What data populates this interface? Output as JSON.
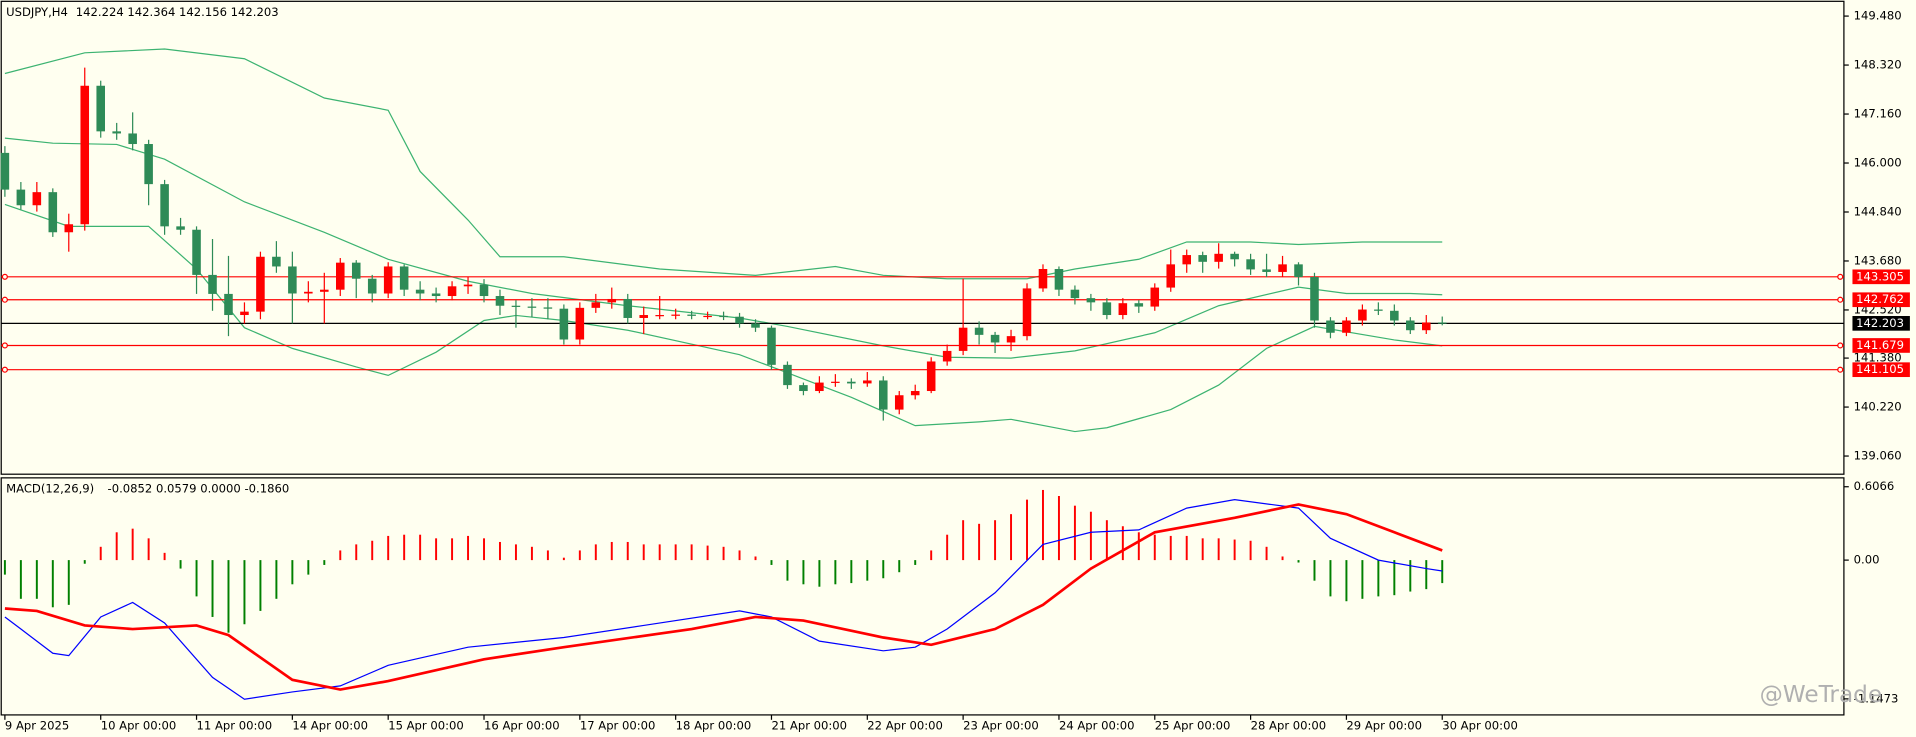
{
  "chart_data": [
    {
      "type": "candlestick",
      "title": "USDJPY,H4",
      "ohlc_text": "142.224 142.364 142.156 142.203",
      "xlim": [
        -0.23,
        115.15
      ],
      "xticks": [
        {
          "value": 0,
          "label": "9 Apr 2025"
        },
        {
          "value": 6,
          "label": "10 Apr 00:00"
        },
        {
          "value": 12,
          "label": "11 Apr 00:00"
        },
        {
          "value": 18,
          "label": "14 Apr 00:00"
        },
        {
          "value": 24,
          "label": "15 Apr 00:00"
        },
        {
          "value": 30,
          "label": "16 Apr 00:00"
        },
        {
          "value": 36,
          "label": "17 Apr 00:00"
        },
        {
          "value": 42,
          "label": "18 Apr 00:00"
        },
        {
          "value": 48,
          "label": "21 Apr 00:00"
        },
        {
          "value": 54,
          "label": "22 Apr 00:00"
        },
        {
          "value": 60,
          "label": "23 Apr 00:00"
        },
        {
          "value": 66,
          "label": "24 Apr 00:00"
        },
        {
          "value": 72,
          "label": "25 Apr 00:00"
        },
        {
          "value": 78,
          "label": "28 Apr 00:00"
        },
        {
          "value": 84,
          "label": "29 Apr 00:00"
        },
        {
          "value": 90,
          "label": "30 Apr 00:00"
        }
      ],
      "ylim": [
        138.63,
        149.83
      ],
      "yticks": [
        {
          "value": 149.48,
          "label": "149.480"
        },
        {
          "value": 148.32,
          "label": "148.320"
        },
        {
          "value": 147.16,
          "label": "147.160"
        },
        {
          "value": 146,
          "label": "146.000"
        },
        {
          "value": 144.84,
          "label": "144.840"
        },
        {
          "value": 143.68,
          "label": "143.680"
        },
        {
          "value": 142.52,
          "label": "142.520"
        },
        {
          "value": 141.38,
          "label": "141.380"
        },
        {
          "value": 140.22,
          "label": "140.220"
        },
        {
          "value": 139.06,
          "label": "139.060"
        }
      ],
      "up_color": "#ff0000",
      "down_color": "#2e8b57",
      "open": [
        146.24,
        145.37,
        145.0,
        145.31,
        144.36,
        144.55,
        147.83,
        146.75,
        146.7,
        146.45,
        145.5,
        144.5,
        144.42,
        143.35,
        142.9,
        142.4,
        142.48,
        143.78,
        143.55,
        142.91,
        142.95,
        143.0,
        143.64,
        143.26,
        142.91,
        143.55,
        143.0,
        142.91,
        142.85,
        143.08,
        143.12,
        142.85,
        142.62,
        142.6,
        142.58,
        142.55,
        141.82,
        142.57,
        142.7,
        142.78,
        142.33,
        142.4,
        142.4,
        142.41,
        142.38,
        142.38,
        142.36,
        142.2,
        142.1,
        141.22,
        140.74,
        140.6,
        140.8,
        140.82,
        140.78,
        140.85,
        140.16,
        140.5,
        140.6,
        141.3,
        141.55,
        142.1,
        141.93,
        141.75,
        141.9,
        143.03,
        143.49,
        143.0,
        142.8,
        142.7,
        142.4,
        142.68,
        142.6,
        143.05,
        143.6,
        143.82,
        143.66,
        143.85,
        143.72,
        143.48,
        143.42,
        143.6,
        143.3,
        142.27,
        141.98,
        142.27,
        142.53,
        142.5,
        142.27,
        142.04,
        142.224
      ],
      "high": [
        146.4,
        145.55,
        145.55,
        145.4,
        144.8,
        148.26,
        147.95,
        146.95,
        147.2,
        146.55,
        145.6,
        144.7,
        144.5,
        144.2,
        143.8,
        142.7,
        143.9,
        144.15,
        143.9,
        143.2,
        143.4,
        143.75,
        143.7,
        143.35,
        143.65,
        143.6,
        143.2,
        143.05,
        143.2,
        143.3,
        143.25,
        143.0,
        142.75,
        142.8,
        142.8,
        142.65,
        142.7,
        142.9,
        143.05,
        142.9,
        142.6,
        142.85,
        142.55,
        142.5,
        142.48,
        142.48,
        142.45,
        142.3,
        142.15,
        141.3,
        140.8,
        140.95,
        141.0,
        140.9,
        141.05,
        140.95,
        140.6,
        140.75,
        141.4,
        141.7,
        143.26,
        142.25,
        142.0,
        142.05,
        143.15,
        143.6,
        143.55,
        143.1,
        142.9,
        142.8,
        142.8,
        142.75,
        143.15,
        143.95,
        143.95,
        143.9,
        144.1,
        143.9,
        143.85,
        143.85,
        143.8,
        143.65,
        143.4,
        142.35,
        142.35,
        142.65,
        142.7,
        142.65,
        142.35,
        142.4,
        142.364
      ],
      "low": [
        145.2,
        144.9,
        144.85,
        144.25,
        143.9,
        144.4,
        146.6,
        146.55,
        146.3,
        145.0,
        144.3,
        144.3,
        142.9,
        142.5,
        141.9,
        142.2,
        142.3,
        143.4,
        142.2,
        142.7,
        142.2,
        142.85,
        142.8,
        142.7,
        142.8,
        142.85,
        142.75,
        142.7,
        142.75,
        142.9,
        142.7,
        142.4,
        142.1,
        142.35,
        142.3,
        141.7,
        141.7,
        142.45,
        142.55,
        142.2,
        141.95,
        142.3,
        142.3,
        142.3,
        142.3,
        142.28,
        142.1,
        142.0,
        141.1,
        140.65,
        140.5,
        140.55,
        140.7,
        140.65,
        140.7,
        139.9,
        140.05,
        140.4,
        140.55,
        141.2,
        141.45,
        141.7,
        141.5,
        141.55,
        141.8,
        142.95,
        142.85,
        142.65,
        142.5,
        142.3,
        142.3,
        142.45,
        142.5,
        142.95,
        143.4,
        143.4,
        143.5,
        143.55,
        143.35,
        143.3,
        143.3,
        143.1,
        142.1,
        141.85,
        141.9,
        142.15,
        142.4,
        142.15,
        141.95,
        141.95,
        142.156
      ],
      "close": [
        145.37,
        145.0,
        145.31,
        144.36,
        144.55,
        147.83,
        146.75,
        146.7,
        146.45,
        145.5,
        144.5,
        144.42,
        143.35,
        142.9,
        142.4,
        142.48,
        143.78,
        143.55,
        142.91,
        142.95,
        143.0,
        143.64,
        143.26,
        142.91,
        143.55,
        143.0,
        142.91,
        142.85,
        143.08,
        143.12,
        142.85,
        142.62,
        142.6,
        142.58,
        142.55,
        141.82,
        142.57,
        142.7,
        142.78,
        142.33,
        142.4,
        142.4,
        142.41,
        142.38,
        142.38,
        142.36,
        142.2,
        142.1,
        141.22,
        140.74,
        140.6,
        140.8,
        140.82,
        140.78,
        140.85,
        140.16,
        140.5,
        140.6,
        141.3,
        141.55,
        142.1,
        141.93,
        141.75,
        141.9,
        143.03,
        143.49,
        143.0,
        142.8,
        142.7,
        142.4,
        142.68,
        142.6,
        143.05,
        143.6,
        143.82,
        143.66,
        143.85,
        143.72,
        143.48,
        143.42,
        143.6,
        143.3,
        142.27,
        141.98,
        142.27,
        142.53,
        142.5,
        142.27,
        142.04,
        142.224,
        142.203
      ],
      "series": [
        {
          "color": "#3cb371",
          "x": [
            0,
            5,
            10,
            15,
            20,
            24,
            26,
            29,
            31,
            35,
            41,
            47,
            52,
            55,
            59,
            64,
            67,
            71,
            74,
            78,
            81,
            85,
            90
          ],
          "values": [
            148.12,
            148.61,
            148.7,
            148.47,
            147.54,
            147.25,
            145.8,
            144.65,
            143.78,
            143.78,
            143.49,
            143.34,
            143.55,
            143.34,
            143.26,
            143.26,
            143.49,
            143.72,
            144.13,
            144.13,
            144.07,
            144.13,
            144.13
          ]
        },
        {
          "color": "#3cb371",
          "x": [
            0,
            3,
            7,
            10,
            15,
            20,
            24,
            29,
            33,
            39,
            46,
            49,
            55,
            59,
            63,
            67,
            72,
            76,
            81,
            84,
            88,
            90
          ],
          "values": [
            146.59,
            146.47,
            146.44,
            146.09,
            145.08,
            144.36,
            143.72,
            143.2,
            142.91,
            142.62,
            142.33,
            142.13,
            141.67,
            141.4,
            141.38,
            141.55,
            141.98,
            142.62,
            143.06,
            142.91,
            142.91,
            142.88
          ]
        },
        {
          "color": "#3cb371",
          "x": [
            0,
            4,
            9,
            12,
            15,
            18,
            22,
            24,
            27,
            30,
            32,
            35,
            39,
            46,
            49,
            53,
            57,
            61,
            63,
            67,
            69,
            73,
            76,
            79,
            82,
            87,
            90
          ],
          "values": [
            145.02,
            144.5,
            144.5,
            143.49,
            142.1,
            141.61,
            141.17,
            140.97,
            141.52,
            142.27,
            142.39,
            142.27,
            142.04,
            141.46,
            141.03,
            140.45,
            139.78,
            139.87,
            139.93,
            139.64,
            139.73,
            140.16,
            140.74,
            141.61,
            142.13,
            141.81,
            141.67
          ]
        }
      ],
      "levels": [
        {
          "value": 143.305,
          "color": "#ff0000"
        },
        {
          "value": 142.762,
          "color": "#ff0000"
        },
        {
          "value": 141.679,
          "color": "#ff0000"
        },
        {
          "value": 141.105,
          "color": "#ff0000"
        }
      ],
      "last_price": {
        "value": 142.203,
        "color": "#000000"
      }
    },
    {
      "type": "macd",
      "title": "MACD(12,26,9)",
      "values_text": "-0.0852 0.0579 0.0000 -0.1860",
      "xlim": [
        -0.23,
        115.15
      ],
      "ylim": [
        -1.28,
        0.68
      ],
      "yticks": [
        0.6066,
        {
          "value": 0,
          "label": "0.00"
        },
        -1.1473
      ],
      "up_color": "#ff0000",
      "down_color": "#008000",
      "histogram": [
        -0.12,
        -0.32,
        -0.32,
        -0.39,
        -0.37,
        -0.03,
        0.11,
        0.23,
        0.26,
        0.18,
        0.06,
        -0.07,
        -0.3,
        -0.47,
        -0.6,
        -0.53,
        -0.42,
        -0.32,
        -0.2,
        -0.12,
        -0.04,
        0.08,
        0.13,
        0.16,
        0.2,
        0.21,
        0.21,
        0.18,
        0.18,
        0.2,
        0.18,
        0.15,
        0.13,
        0.11,
        0.08,
        0.02,
        0.08,
        0.13,
        0.15,
        0.15,
        0.13,
        0.13,
        0.13,
        0.13,
        0.12,
        0.11,
        0.08,
        0.03,
        -0.04,
        -0.17,
        -0.2,
        -0.22,
        -0.2,
        -0.19,
        -0.17,
        -0.15,
        -0.1,
        -0.04,
        0.08,
        0.21,
        0.33,
        0.3,
        0.33,
        0.38,
        0.5,
        0.58,
        0.53,
        0.45,
        0.4,
        0.33,
        0.28,
        0.23,
        0.21,
        0.2,
        0.2,
        0.18,
        0.18,
        0.17,
        0.16,
        0.11,
        0.03,
        -0.02,
        -0.17,
        -0.3,
        -0.34,
        -0.32,
        -0.3,
        -0.29,
        -0.26,
        -0.24,
        -0.19
      ],
      "series": [
        {
          "color": "#0000ff",
          "width": 1,
          "x": [
            0,
            1,
            3,
            4,
            6,
            8,
            10,
            13,
            15,
            18,
            21,
            24,
            29,
            35,
            40,
            46,
            48,
            51,
            55,
            57,
            59,
            62,
            65,
            68,
            71,
            74,
            77,
            81,
            83,
            86,
            89,
            90
          ],
          "values": [
            -0.47,
            -0.57,
            -0.77,
            -0.79,
            -0.47,
            -0.35,
            -0.52,
            -0.97,
            -1.15,
            -1.09,
            -1.04,
            -0.87,
            -0.72,
            -0.64,
            -0.54,
            -0.42,
            -0.47,
            -0.67,
            -0.75,
            -0.72,
            -0.57,
            -0.27,
            0.13,
            0.23,
            0.25,
            0.43,
            0.5,
            0.43,
            0.18,
            0.0,
            -0.07,
            -0.09
          ]
        },
        {
          "color": "#ff0000",
          "width": 2.2,
          "x": [
            0,
            2,
            5,
            8,
            12,
            14,
            18,
            21,
            24,
            30,
            35,
            43,
            47,
            50,
            55,
            58,
            62,
            65,
            68,
            72,
            77,
            81,
            84,
            87,
            90
          ],
          "values": [
            -0.4,
            -0.42,
            -0.54,
            -0.57,
            -0.54,
            -0.62,
            -0.99,
            -1.07,
            -1.0,
            -0.82,
            -0.72,
            -0.57,
            -0.47,
            -0.5,
            -0.64,
            -0.7,
            -0.57,
            -0.37,
            -0.07,
            0.23,
            0.35,
            0.46,
            0.38,
            0.23,
            0.08
          ]
        }
      ]
    }
  ],
  "watermark": "@WeTrade"
}
